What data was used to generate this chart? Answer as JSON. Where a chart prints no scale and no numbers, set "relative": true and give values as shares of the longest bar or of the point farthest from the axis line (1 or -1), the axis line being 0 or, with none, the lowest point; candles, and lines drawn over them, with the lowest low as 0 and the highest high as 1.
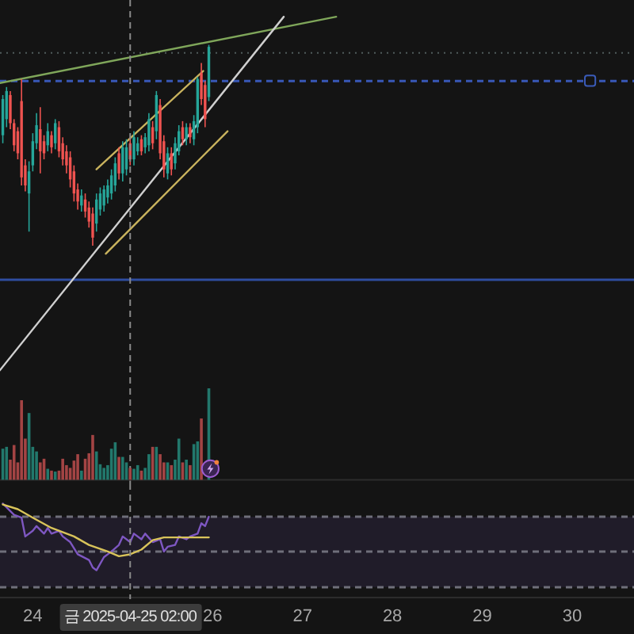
{
  "chart_data": [
    {
      "type": "candlestick",
      "x": [
        "2025-04-23T16:00",
        "2025-04-23T17:00",
        "2025-04-23T18:00",
        "2025-04-23T19:00",
        "2025-04-23T20:00",
        "2025-04-23T21:00",
        "2025-04-23T22:00",
        "2025-04-23T23:00",
        "2025-04-24T00:00",
        "2025-04-24T01:00",
        "2025-04-24T02:00",
        "2025-04-24T03:00",
        "2025-04-24T04:00",
        "2025-04-24T05:00",
        "2025-04-24T06:00",
        "2025-04-24T07:00",
        "2025-04-24T08:00",
        "2025-04-24T09:00",
        "2025-04-24T10:00",
        "2025-04-24T11:00",
        "2025-04-24T12:00",
        "2025-04-24T13:00",
        "2025-04-24T14:00",
        "2025-04-24T15:00",
        "2025-04-24T16:00",
        "2025-04-24T17:00",
        "2025-04-24T18:00",
        "2025-04-24T19:00",
        "2025-04-24T20:00",
        "2025-04-24T21:00",
        "2025-04-24T22:00",
        "2025-04-24T23:00",
        "2025-04-25T00:00",
        "2025-04-25T01:00",
        "2025-04-25T02:00",
        "2025-04-25T03:00",
        "2025-04-25T04:00",
        "2025-04-25T05:00",
        "2025-04-25T06:00",
        "2025-04-25T07:00",
        "2025-04-25T08:00",
        "2025-04-25T09:00",
        "2025-04-25T10:00",
        "2025-04-25T11:00",
        "2025-04-25T12:00",
        "2025-04-25T13:00",
        "2025-04-25T14:00",
        "2025-04-25T15:00",
        "2025-04-25T16:00",
        "2025-04-25T17:00",
        "2025-04-25T18:00",
        "2025-04-25T19:00",
        "2025-04-25T20:00",
        "2025-04-25T21:00",
        "2025-04-25T22:00",
        "2025-04-25T23:00"
      ],
      "ohlc": [
        [
          0.55,
          0.75,
          0.51,
          0.73
        ],
        [
          0.63,
          0.79,
          0.59,
          0.77
        ],
        [
          0.75,
          0.77,
          0.58,
          0.61
        ],
        [
          0.61,
          0.63,
          0.47,
          0.5
        ],
        [
          0.57,
          0.59,
          0.43,
          0.46
        ],
        [
          0.72,
          0.83,
          0.3,
          0.34
        ],
        [
          0.4,
          0.43,
          0.27,
          0.3
        ],
        [
          0.26,
          0.42,
          0.07,
          0.37
        ],
        [
          0.4,
          0.56,
          0.37,
          0.52
        ],
        [
          0.51,
          0.66,
          0.48,
          0.6
        ],
        [
          0.58,
          0.69,
          0.36,
          0.47
        ],
        [
          0.52,
          0.55,
          0.43,
          0.46
        ],
        [
          0.5,
          0.61,
          0.47,
          0.57
        ],
        [
          0.55,
          0.57,
          0.46,
          0.49
        ],
        [
          0.51,
          0.63,
          0.48,
          0.61
        ],
        [
          0.59,
          0.62,
          0.44,
          0.47
        ],
        [
          0.51,
          0.54,
          0.4,
          0.43
        ],
        [
          0.47,
          0.5,
          0.36,
          0.4
        ],
        [
          0.44,
          0.47,
          0.29,
          0.33
        ],
        [
          0.37,
          0.4,
          0.22,
          0.26
        ],
        [
          0.28,
          0.31,
          0.18,
          0.22
        ],
        [
          0.2,
          0.28,
          0.17,
          0.25
        ],
        [
          0.23,
          0.26,
          0.14,
          0.17
        ],
        [
          0.19,
          0.22,
          0.09,
          0.12
        ],
        [
          0.16,
          0.19,
          0,
          0.04
        ],
        [
          0.11,
          0.26,
          0.07,
          0.23
        ],
        [
          0.18,
          0.29,
          0.15,
          0.26
        ],
        [
          0.2,
          0.3,
          0.17,
          0.28
        ],
        [
          0.24,
          0.33,
          0.21,
          0.3
        ],
        [
          0.26,
          0.38,
          0.23,
          0.35
        ],
        [
          0.3,
          0.44,
          0.27,
          0.41
        ],
        [
          0.46,
          0.49,
          0.33,
          0.36
        ],
        [
          0.36,
          0.52,
          0.32,
          0.49
        ],
        [
          0.38,
          0.53,
          0.35,
          0.49
        ],
        [
          0.51,
          0.54,
          0.4,
          0.43
        ],
        [
          0.43,
          0.57,
          0.4,
          0.54
        ],
        [
          0.47,
          0.54,
          0.45,
          0.51
        ],
        [
          0.53,
          0.55,
          0.45,
          0.47
        ],
        [
          0.49,
          0.56,
          0.46,
          0.54
        ],
        [
          0.5,
          0.66,
          0.47,
          0.63
        ],
        [
          0.59,
          0.62,
          0.48,
          0.51
        ],
        [
          0.57,
          0.77,
          0.53,
          0.75
        ],
        [
          0.7,
          0.73,
          0.43,
          0.46
        ],
        [
          0.52,
          0.55,
          0.34,
          0.38
        ],
        [
          0.36,
          0.49,
          0.33,
          0.46
        ],
        [
          0.46,
          0.49,
          0.35,
          0.38
        ],
        [
          0.41,
          0.54,
          0.38,
          0.51
        ],
        [
          0.47,
          0.6,
          0.45,
          0.57
        ],
        [
          0.59,
          0.62,
          0.5,
          0.53
        ],
        [
          0.53,
          0.61,
          0.5,
          0.59
        ],
        [
          0.59,
          0.61,
          0.51,
          0.54
        ],
        [
          0.53,
          0.65,
          0.5,
          0.62
        ],
        [
          0.59,
          0.84,
          0.56,
          0.83
        ],
        [
          0.86,
          0.91,
          0.7,
          0.73
        ],
        [
          0.8,
          0.82,
          0.59,
          0.63
        ],
        [
          0.74,
          1,
          0.72,
          0.99
        ]
      ],
      "colors": [
        "#26a69a",
        "#26a69a",
        "#ef5350",
        "#ef5350",
        "#ef5350",
        "#ef5350",
        "#ef5350",
        "#26a69a",
        "#26a69a",
        "#26a69a",
        "#ef5350",
        "#ef5350",
        "#26a69a",
        "#ef5350",
        "#26a69a",
        "#ef5350",
        "#ef5350",
        "#ef5350",
        "#ef5350",
        "#ef5350",
        "#ef5350",
        "#26a69a",
        "#ef5350",
        "#ef5350",
        "#ef5350",
        "#26a69a",
        "#26a69a",
        "#26a69a",
        "#26a69a",
        "#26a69a",
        "#26a69a",
        "#ef5350",
        "#26a69a",
        "#26a69a",
        "#ef5350",
        "#26a69a",
        "#26a69a",
        "#ef5350",
        "#26a69a",
        "#26a69a",
        "#ef5350",
        "#26a69a",
        "#ef5350",
        "#ef5350",
        "#26a69a",
        "#ef5350",
        "#26a69a",
        "#26a69a",
        "#ef5350",
        "#26a69a",
        "#ef5350",
        "#26a69a",
        "#26a69a",
        "#ef5350",
        "#ef5350",
        "#26a69a"
      ],
      "relative": true,
      "series": [
        {
          "type": "line",
          "x": [
            "2025-04-23T15:15",
            "2025-04-27T09:00"
          ],
          "values": [
            0.81,
            1.14
          ],
          "color": "#7fa65a"
        },
        {
          "type": "line",
          "x": [
            "2025-04-23T15:15",
            "2025-04-26T19:00"
          ],
          "values": [
            -0.62,
            1.14
          ],
          "color": "#cfcfcf"
        },
        {
          "type": "line",
          "x": [
            "2025-04-24T17:00",
            "2025-04-25T21:30"
          ],
          "values": [
            0.38,
            0.87
          ],
          "color": "#c9b35e"
        },
        {
          "type": "line",
          "x": [
            "2025-04-24T19:30",
            "2025-04-26T04:00"
          ],
          "values": [
            -0.04,
            0.57
          ],
          "color": "#c9b35e"
        }
      ],
      "ref_lines": [
        {
          "axis": "y",
          "value": 0.96,
          "color": "#4f5b5b",
          "line_style": "dotted"
        },
        {
          "axis": "y",
          "value": 0.82,
          "color": "#3858b8",
          "line_style": "dashed"
        },
        {
          "axis": "y",
          "value": -0.17,
          "color": "#2f4da0",
          "line_style": "solid"
        },
        {
          "axis": "x",
          "value": "2025-04-25T02:00",
          "color": "#8a8a8a",
          "line_style": "dashed"
        }
      ],
      "xlim": [
        "2025-04-23T15:15",
        "2025-04-30T16:30"
      ],
      "tick_labels": false
    },
    {
      "type": "bar",
      "x": [
        "2025-04-23T16:00",
        "2025-04-23T17:00",
        "2025-04-23T18:00",
        "2025-04-23T19:00",
        "2025-04-23T20:00",
        "2025-04-23T21:00",
        "2025-04-23T22:00",
        "2025-04-23T23:00",
        "2025-04-24T00:00",
        "2025-04-24T01:00",
        "2025-04-24T02:00",
        "2025-04-24T03:00",
        "2025-04-24T04:00",
        "2025-04-24T05:00",
        "2025-04-24T06:00",
        "2025-04-24T07:00",
        "2025-04-24T08:00",
        "2025-04-24T09:00",
        "2025-04-24T10:00",
        "2025-04-24T11:00",
        "2025-04-24T12:00",
        "2025-04-24T13:00",
        "2025-04-24T14:00",
        "2025-04-24T15:00",
        "2025-04-24T16:00",
        "2025-04-24T17:00",
        "2025-04-24T18:00",
        "2025-04-24T19:00",
        "2025-04-24T20:00",
        "2025-04-24T21:00",
        "2025-04-24T22:00",
        "2025-04-24T23:00",
        "2025-04-25T00:00",
        "2025-04-25T01:00",
        "2025-04-25T02:00",
        "2025-04-25T03:00",
        "2025-04-25T04:00",
        "2025-04-25T05:00",
        "2025-04-25T06:00",
        "2025-04-25T07:00",
        "2025-04-25T08:00",
        "2025-04-25T09:00",
        "2025-04-25T10:00",
        "2025-04-25T11:00",
        "2025-04-25T12:00",
        "2025-04-25T13:00",
        "2025-04-25T14:00",
        "2025-04-25T15:00",
        "2025-04-25T16:00",
        "2025-04-25T17:00",
        "2025-04-25T18:00",
        "2025-04-25T19:00",
        "2025-04-25T20:00",
        "2025-04-25T21:00",
        "2025-04-25T22:00",
        "2025-04-25T23:00"
      ],
      "values": [
        0.34,
        0.36,
        0.22,
        0.38,
        0.19,
        0.87,
        0.45,
        0.73,
        0.36,
        0.31,
        0.19,
        0.23,
        0.12,
        0.1,
        0.09,
        0.1,
        0.23,
        0.16,
        0.13,
        0.21,
        0.28,
        0.1,
        0.23,
        0.29,
        0.49,
        0.31,
        0.17,
        0.13,
        0.16,
        0.34,
        0.41,
        0.25,
        0.25,
        0.19,
        0.13,
        0.12,
        0.16,
        0.1,
        0.13,
        0.28,
        0.36,
        0.36,
        0.28,
        0.19,
        0.19,
        0.16,
        0.22,
        0.45,
        0.19,
        0.22,
        0.16,
        0.39,
        0.42,
        0.67,
        null,
        1
      ],
      "colors": [
        "#22786c",
        "#22786c",
        "#a34444",
        "#a34444",
        "#a34444",
        "#a34444",
        "#a34444",
        "#22786c",
        "#22786c",
        "#22786c",
        "#a34444",
        "#a34444",
        "#22786c",
        "#a34444",
        "#22786c",
        "#a34444",
        "#a34444",
        "#a34444",
        "#a34444",
        "#a34444",
        "#a34444",
        "#22786c",
        "#a34444",
        "#a34444",
        "#a34444",
        "#22786c",
        "#22786c",
        "#22786c",
        "#22786c",
        "#22786c",
        "#22786c",
        "#a34444",
        "#22786c",
        "#22786c",
        "#a34444",
        "#22786c",
        "#22786c",
        "#a34444",
        "#22786c",
        "#22786c",
        "#a34444",
        "#22786c",
        "#a34444",
        "#a34444",
        "#22786c",
        "#a34444",
        "#22786c",
        "#22786c",
        "#a34444",
        "#22786c",
        "#a34444",
        "#22786c",
        "#22786c",
        "#a34444",
        null,
        "#22786c"
      ],
      "relative": true,
      "xlim": [
        "2025-04-23T15:15",
        "2025-04-30T16:30"
      ],
      "tick_labels": false
    },
    {
      "type": "line",
      "series": [
        {
          "x": [
            "2025-04-23T16:00",
            "2025-04-23T17:00",
            "2025-04-23T19:00",
            "2025-04-23T21:00",
            "2025-04-23T22:00",
            "2025-04-24T00:00",
            "2025-04-24T01:00",
            "2025-04-24T03:00",
            "2025-04-24T04:00",
            "2025-04-24T05:00",
            "2025-04-24T07:00",
            "2025-04-24T08:00",
            "2025-04-24T10:00",
            "2025-04-24T12:00",
            "2025-04-24T15:00",
            "2025-04-24T16:00",
            "2025-04-24T17:00",
            "2025-04-24T19:00",
            "2025-04-24T21:00",
            "2025-04-24T23:00",
            "2025-04-25T00:00",
            "2025-04-25T02:00",
            "2025-04-25T03:00",
            "2025-04-25T05:00",
            "2025-04-25T06:00",
            "2025-04-25T08:00",
            "2025-04-25T10:00",
            "2025-04-25T11:00",
            "2025-04-25T12:00",
            "2025-04-25T14:00",
            "2025-04-25T15:00",
            "2025-04-25T17:00",
            "2025-04-25T18:00",
            "2025-04-25T20:00",
            "2025-04-25T21:00",
            "2025-04-25T22:00",
            "2025-04-25T23:00"
          ],
          "values": [
            1,
            0.96,
            0.88,
            0.85,
            0.65,
            0.71,
            0.76,
            0.68,
            0.74,
            0.68,
            0.71,
            0.65,
            0.59,
            0.46,
            0.4,
            0.32,
            0.29,
            0.43,
            0.49,
            0.56,
            0.65,
            0.59,
            0.68,
            0.62,
            0.68,
            0.59,
            0.62,
            0.49,
            0.54,
            0.56,
            0.65,
            0.62,
            0.65,
            0.68,
            0.79,
            0.76,
            0.86
          ],
          "color": "#7e57c2"
        },
        {
          "x": [
            "2025-04-23T16:00",
            "2025-04-23T20:00",
            "2025-04-24T00:00",
            "2025-04-24T05:00",
            "2025-04-24T11:00",
            "2025-04-24T15:00",
            "2025-04-24T20:00",
            "2025-04-24T23:00",
            "2025-04-25T02:00",
            "2025-04-25T05:00",
            "2025-04-25T08:00",
            "2025-04-25T11:00",
            "2025-04-25T15:00",
            "2025-04-25T20:00",
            "2025-04-25T23:00"
          ],
          "values": [
            0.99,
            0.94,
            0.85,
            0.74,
            0.65,
            0.56,
            0.49,
            0.44,
            0.46,
            0.51,
            0.61,
            0.64,
            0.64,
            0.64,
            0.64
          ],
          "color": "#d9c45a"
        }
      ],
      "relative": true,
      "bands": [
        {
          "axis": "y",
          "from": 0.11,
          "to": 0.86,
          "color": "#7e57c2"
        }
      ],
      "ref_lines": [
        {
          "axis": "y",
          "value": 0.86,
          "color": "#6f6f7a",
          "line_style": "dashed"
        },
        {
          "axis": "y",
          "value": 0.49,
          "color": "#6f6f7a",
          "line_style": "dashed"
        },
        {
          "axis": "y",
          "value": 0.11,
          "color": "#6f6f7a",
          "line_style": "dashed"
        },
        {
          "axis": "x",
          "value": "2025-04-25T02:00",
          "label": "금 2025-04-25 02:00",
          "color": "#8a8a8a",
          "line_style": "dashed"
        }
      ],
      "xlim": [
        "2025-04-23T15:15",
        "2025-04-30T16:30"
      ],
      "xticks": [
        {
          "value": "2025-04-24",
          "label": "24"
        },
        {
          "value": "2025-04-26",
          "label": "26"
        },
        {
          "value": "2025-04-27",
          "label": "27"
        },
        {
          "value": "2025-04-28",
          "label": "28"
        },
        {
          "value": "2025-04-29",
          "label": "29"
        },
        {
          "value": "2025-04-30",
          "label": "30"
        }
      ],
      "tick_labels": "x"
    }
  ]
}
